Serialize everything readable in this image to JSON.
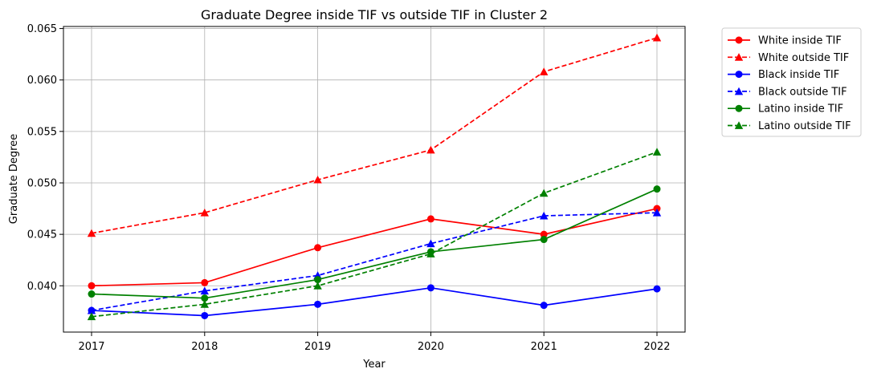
{
  "chart_data": {
    "type": "line",
    "title": "Graduate Degree inside TIF vs outside TIF in Cluster 2",
    "xlabel": "Year",
    "ylabel": "Graduate Degree",
    "x": [
      2017,
      2018,
      2019,
      2020,
      2021,
      2022
    ],
    "x_tick_labels": [
      "2017",
      "2018",
      "2019",
      "2020",
      "2021",
      "2022"
    ],
    "ylim": [
      0.0355,
      0.0652
    ],
    "y_ticks": [
      0.04,
      0.045,
      0.05,
      0.055,
      0.06,
      0.065
    ],
    "y_tick_labels": [
      "0.040",
      "0.045",
      "0.050",
      "0.055",
      "0.060",
      "0.065"
    ],
    "grid": true,
    "legend_position": "outside right, top",
    "series": [
      {
        "name": "White inside TIF",
        "color": "#ff0000",
        "style": "solid",
        "marker": "circle",
        "values": [
          0.04,
          0.0403,
          0.0437,
          0.0465,
          0.045,
          0.0475
        ]
      },
      {
        "name": "White outside TIF",
        "color": "#ff0000",
        "style": "dashed",
        "marker": "triangle",
        "values": [
          0.0451,
          0.0471,
          0.0503,
          0.0532,
          0.0608,
          0.0641
        ]
      },
      {
        "name": "Black inside TIF",
        "color": "#0000ff",
        "style": "solid",
        "marker": "circle",
        "values": [
          0.0376,
          0.0371,
          0.0382,
          0.0398,
          0.0381,
          0.0397
        ]
      },
      {
        "name": "Black outside TIF",
        "color": "#0000ff",
        "style": "dashed",
        "marker": "triangle",
        "values": [
          0.0376,
          0.0395,
          0.041,
          0.0441,
          0.0468,
          0.0471
        ]
      },
      {
        "name": "Latino inside TIF",
        "color": "#008000",
        "style": "solid",
        "marker": "circle",
        "values": [
          0.0392,
          0.0388,
          0.0406,
          0.0433,
          0.0445,
          0.0494
        ]
      },
      {
        "name": "Latino outside TIF",
        "color": "#008000",
        "style": "dashed",
        "marker": "triangle",
        "values": [
          0.037,
          0.0382,
          0.04,
          0.0431,
          0.049,
          0.053
        ]
      }
    ]
  }
}
